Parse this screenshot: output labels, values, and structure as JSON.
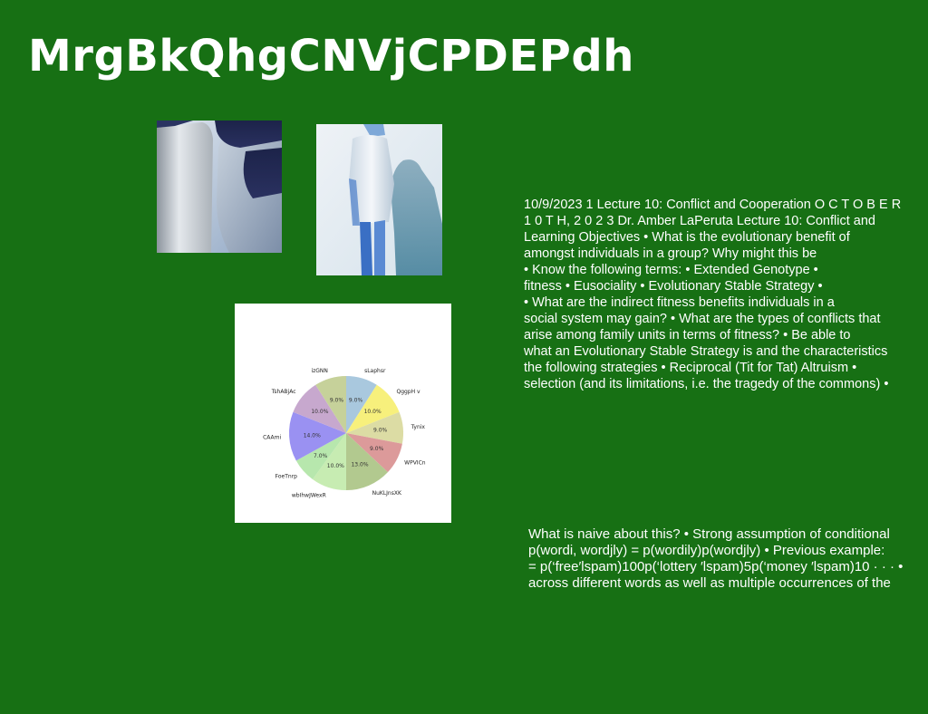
{
  "title": "MrgBkQhgCNVjCPDEPdh",
  "images": [
    {
      "name": "abstract-tiles-photo"
    },
    {
      "name": "person-shadow-photo"
    }
  ],
  "colors": {
    "background": "#177014",
    "text": "#ffffff"
  },
  "chart_data": {
    "type": "pie",
    "title": "",
    "slices": [
      {
        "label": "sLaphsr",
        "value": 9.0,
        "pct": "9.0%",
        "color": "#a9c8de"
      },
      {
        "label": "QggpH v",
        "value": 10.0,
        "pct": "10.0%",
        "color": "#f7f07c"
      },
      {
        "label": "Tynix",
        "value": 9.0,
        "pct": "9.0%",
        "color": "#dcdca4"
      },
      {
        "label": "WPVICn",
        "value": 9.0,
        "pct": "9.0%",
        "color": "#dc9a9a"
      },
      {
        "label": "NuKLJnsXK",
        "value": 13.0,
        "pct": "13.0%",
        "color": "#b2c98f"
      },
      {
        "label": "wbIhwJWexR",
        "value": 10.0,
        "pct": "10.0%",
        "color": "#c7ecb2"
      },
      {
        "label": "FoeTnrp",
        "value": 7.0,
        "pct": "7.0%",
        "color": "#b7e7ad"
      },
      {
        "label": "CAAmi",
        "value": 14.0,
        "pct": "14.0%",
        "color": "#9a91f2"
      },
      {
        "label": "TshABjAc",
        "value": 10.0,
        "pct": "10.0%",
        "color": "#c7a8ce"
      },
      {
        "label": "izGNN",
        "value": 9.0,
        "pct": "9.0%",
        "color": "#c6d19a"
      }
    ]
  },
  "text_block_1": [
    "10/9/2023 1 Lecture 10: Conflict and Cooperation O C T O B E R",
    "1 0 T H, 2 0 2 3 Dr. Amber LaPeruta Lecture 10: Conflict and",
    "Learning Objectives • What is the evolutionary benefit of",
    "amongst individuals in a group? Why might this be",
    "• Know the following terms: • Extended Genotype •",
    "fitness • Eusociality • Evolutionary Stable Strategy •",
    "• What are the indirect fitness benefits individuals in a",
    "social system may gain? • What are the types of conflicts that",
    "arise among family units in terms of fitness? • Be able to",
    "what an Evolutionary Stable Strategy is and the characteristics",
    "the following strategies • Reciprocal (Tit for Tat) Altruism •",
    "selection (and its limitations, i.e. the tragedy of the commons) •"
  ],
  "text_block_2": [
    "What is naive about this? • Strong assumption of conditional",
    "p(wordi, wordjly) = p(wordily)p(wordjly) • Previous example:",
    "= p(‘free′lspam)100p(‘lottery ′lspam)5p(‘money ′lspam)10 · · · •",
    "across different words as well as multiple occurrences of the"
  ]
}
